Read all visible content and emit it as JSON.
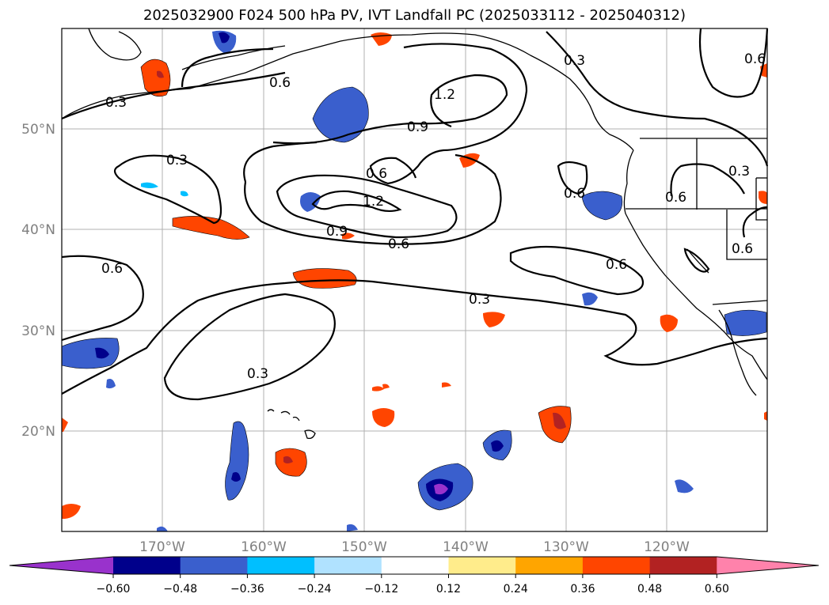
{
  "title": "2025032900 F024 500 hPa PV, IVT Landfall PC (2025033112 - 2025040312)",
  "latitude_labels": [
    {
      "value": 50,
      "label": "50°N"
    },
    {
      "value": 40,
      "label": "40°N"
    },
    {
      "value": 30,
      "label": "30°N"
    },
    {
      "value": 20,
      "label": "20°N"
    }
  ],
  "longitude_labels": [
    {
      "value": -170,
      "label": "170°W"
    },
    {
      "value": -160,
      "label": "160°W"
    },
    {
      "value": -150,
      "label": "150°W"
    },
    {
      "value": -140,
      "label": "140°W"
    },
    {
      "value": -130,
      "label": "130°W"
    },
    {
      "value": -120,
      "label": "120°W"
    }
  ],
  "contour_labels": [
    "0.3",
    "0.6",
    "1.2",
    "0.9",
    "0.3",
    "0.6",
    "1.2",
    "0.9",
    "0.6",
    "0.6",
    "0.3",
    "0.6",
    "0.6",
    "0.3",
    "0.6",
    "0.3",
    "0.3",
    "0.6",
    "0.6"
  ],
  "colorbar": {
    "ticks": [
      "−0.60",
      "−0.48",
      "−0.36",
      "−0.24",
      "−0.12",
      "0.12",
      "0.24",
      "0.36",
      "0.48",
      "0.60"
    ],
    "colors": [
      "#9932cc",
      "#00008b",
      "#3a5fcd",
      "#00bfff",
      "#b0e2ff",
      "#ffffff",
      "#ffec8b",
      "#ffa500",
      "#ff4500",
      "#b22222",
      "#ff82ab"
    ]
  }
}
